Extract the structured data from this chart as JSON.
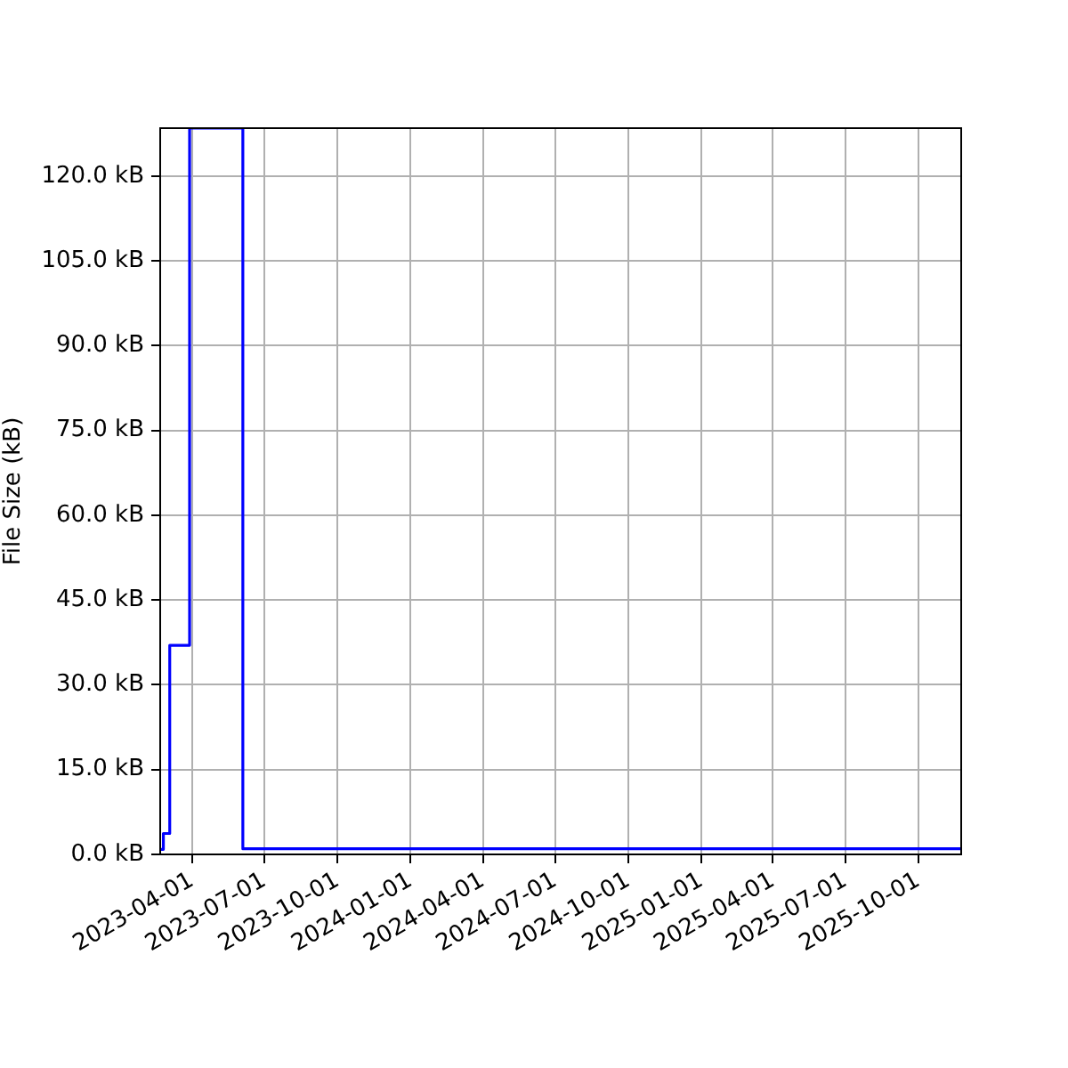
{
  "chart_data": {
    "type": "step",
    "ylabel": "File Size (kB)",
    "x": [
      "2023-02-20",
      "2023-02-24",
      "2023-03-04",
      "2023-03-29",
      "2023-06-04",
      "2025-11-24"
    ],
    "values": [
      0.9,
      3.7,
      37,
      128.5,
      1.0,
      1.0
    ],
    "color": "#0000ff",
    "xlim": [
      "2023-02-20",
      "2025-11-24"
    ],
    "xticks": [
      "2023-04-01",
      "2023-07-01",
      "2023-10-01",
      "2024-01-01",
      "2024-04-01",
      "2024-07-01",
      "2024-10-01",
      "2025-01-01",
      "2025-04-01",
      "2025-07-01",
      "2025-10-01"
    ],
    "ylim": [
      0,
      128.5
    ],
    "yticks": [
      {
        "value": 0,
        "label": "0.0 kB"
      },
      {
        "value": 15,
        "label": "15.0 kB"
      },
      {
        "value": 30,
        "label": "30.0 kB"
      },
      {
        "value": 45,
        "label": "45.0 kB"
      },
      {
        "value": 60,
        "label": "60.0 kB"
      },
      {
        "value": 75,
        "label": "75.0 kB"
      },
      {
        "value": 90,
        "label": "90.0 kB"
      },
      {
        "value": 105,
        "label": "105.0 kB"
      },
      {
        "value": 120,
        "label": "120.0 kB"
      }
    ],
    "grid": true
  }
}
